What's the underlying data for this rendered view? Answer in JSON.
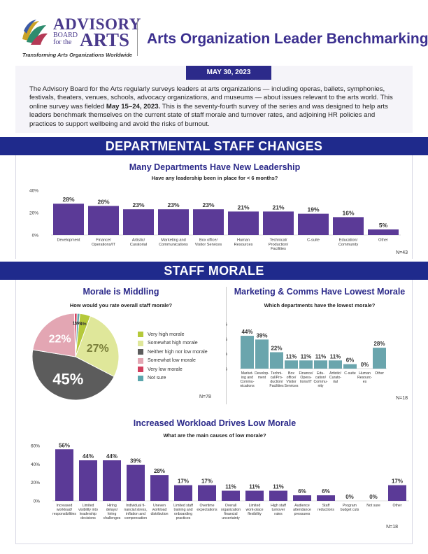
{
  "header": {
    "logo_line1": "ADVISORY",
    "logo_line2a": "BOARD",
    "logo_line2b": "for the",
    "logo_line3": "ARTS",
    "tagline": "Transforming Arts Organizations Worldwide",
    "title": "Arts Organization Leader Benchmarking"
  },
  "intro": {
    "date": "MAY 30, 2023",
    "text_1": "The Advisory Board for the Arts regularly surveys leaders at arts organizations — including operas, ballets, symphonies, festivals, theaters, venues, schools, advocacy organizations, and museums — about issues relevant to the arts world. This online survey was fielded ",
    "text_bold": "May 15–24, 2023.",
    "text_2": " This is the seventy-fourth survey of the series and was designed to help arts leaders benchmark themselves on the current state of staff morale and turnover rates, and adjoining HR policies and practices to support wellbeing and avoid the risks of burnout."
  },
  "banners": {
    "departmental": "DEPARTMENTAL STAFF CHANGES",
    "morale": "STAFF MORALE"
  },
  "colors": {
    "bar": "#5b3a97",
    "teal": "#6aa5ad",
    "banner": "#1f2a8c",
    "title": "#2c2a8a"
  },
  "chart_data": [
    {
      "type": "bar",
      "title": "Many Departments Have New Leadership",
      "subtitle": "Have any leadership been in place for < 6 months?",
      "categories": [
        "Development",
        "Finance/\nOperations/IT",
        "Artistic/\nCuratorial",
        "Marketing and\nCommunications",
        "Box office/\nVisitor Services",
        "Human\nResources",
        "Technical/\nProduction/\nFacilities",
        "C-suite",
        "Education/\nCommunity",
        "Other"
      ],
      "values": [
        28,
        26,
        23,
        23,
        23,
        21,
        21,
        19,
        16,
        5
      ],
      "value_labels": [
        "28%",
        "26%",
        "23%",
        "23%",
        "23%",
        "21%",
        "21%",
        "19%",
        "16%",
        "5%"
      ],
      "y_ticks": [
        "0%",
        "20%",
        "40%"
      ],
      "ylim": [
        0,
        40
      ],
      "n": "N=43",
      "color": "#5b3a97"
    },
    {
      "type": "pie",
      "title": "Morale is Middling",
      "subtitle": "How would you rate overall staff morale?",
      "slices": [
        {
          "label": "Very high morale",
          "value": 4,
          "display": "4%",
          "color": "#b5c93a"
        },
        {
          "label": "Somewhat high morale",
          "value": 27,
          "display": "27%",
          "color": "#dfe79a"
        },
        {
          "label": "Neither high nor low morale",
          "value": 45,
          "display": "45%",
          "color": "#5c5c5c"
        },
        {
          "label": "Somewhat low morale",
          "value": 22,
          "display": "22%",
          "color": "#e3a6b3"
        },
        {
          "label": "Very low morale",
          "value": 1,
          "display": "1%",
          "color": "#d2405e"
        },
        {
          "label": "Not sure",
          "value": 1,
          "display": "1%",
          "color": "#5ba6ad"
        }
      ],
      "n": "N=78"
    },
    {
      "type": "bar",
      "title": "Marketing & Comms Have Lowest Morale",
      "subtitle": "Which departments have the lowest morale?",
      "categories": [
        "Market-\ning and\nCommu-\nnications",
        "Develop-\nment",
        "Techni-\ncal/Pro-\nduction/\nFacilities",
        "Box\noffice/\nVisitor\nServices",
        "Finance/\nOpera-\ntions/IT",
        "Edu-\ncation/\nCommu-\nnity",
        "Artistic/\nCurato-\nrial",
        "C-suite",
        "Human\nResourc-\nes",
        "Other"
      ],
      "values": [
        44,
        39,
        22,
        11,
        11,
        11,
        11,
        6,
        0,
        28
      ],
      "value_labels": [
        "44%",
        "39%",
        "22%",
        "11%",
        "11%",
        "11%",
        "11%",
        "6%",
        "0%",
        "28%"
      ],
      "y_ticks": [
        "0%",
        "20%",
        "40%",
        "60%"
      ],
      "ylim": [
        0,
        60
      ],
      "n": "N=18",
      "color": "#6aa5ad"
    },
    {
      "type": "bar",
      "title": "Increased Workload Drives Low Morale",
      "subtitle": "What are the main causes of low morale?",
      "categories": [
        "Increased\nworkload/\nresponsibilities",
        "Limited\nvisibility into\nleadership\ndecisions",
        "Hiring\ndelays/\nhiring\nchallenges",
        "Individual fi-\nnancial stress,\ninflation and\ncompensation",
        "Uneven\nworkload\ndistribution",
        "Limited staff\ntraining and\nonboarding\npractices",
        "Overtime\nexpectations",
        "Overall\norganization\nfinancial\nuncertainty",
        "Limited\nwork-place\nflexibility",
        "High staff\nturnover\nrates",
        "Audience\nattendance\npressures",
        "Staff\nreductions",
        "Program\nbudget cuts",
        "Not sure",
        "Other"
      ],
      "values": [
        56,
        44,
        44,
        39,
        28,
        17,
        17,
        11,
        11,
        11,
        6,
        6,
        0,
        0,
        17
      ],
      "value_labels": [
        "56%",
        "44%",
        "44%",
        "39%",
        "28%",
        "17%",
        "17%",
        "11%",
        "11%",
        "11%",
        "6%",
        "6%",
        "0%",
        "0%",
        "17%"
      ],
      "y_ticks": [
        "0%",
        "20%",
        "40%",
        "60%"
      ],
      "ylim": [
        0,
        60
      ],
      "n": "N=18",
      "color": "#5b3a97"
    }
  ]
}
